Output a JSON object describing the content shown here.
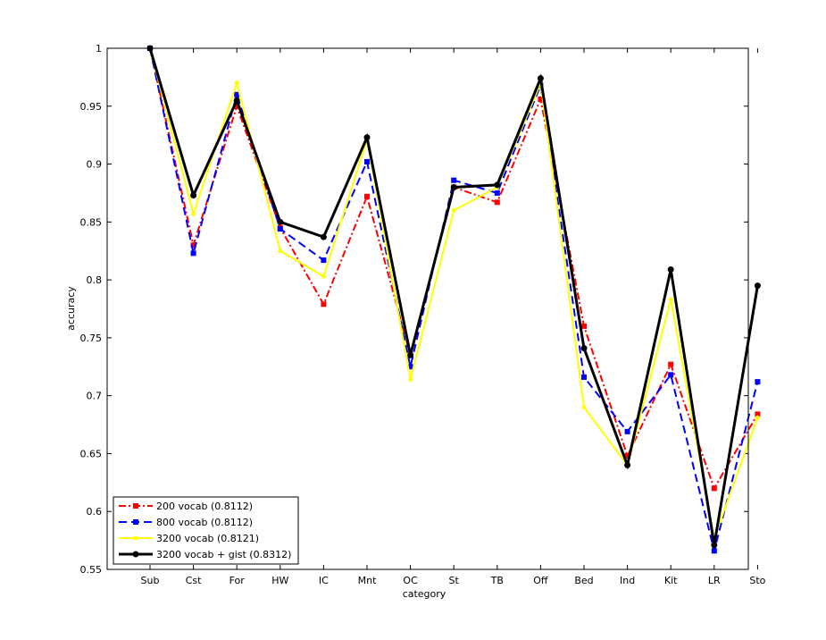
{
  "chart_data": {
    "type": "line",
    "title": "",
    "xlabel": "category",
    "ylabel": "accuracy",
    "categories": [
      "Sub",
      "Cst",
      "For",
      "HW",
      "IC",
      "Mnt",
      "OC",
      "St",
      "TB",
      "Off",
      "Bed",
      "Ind",
      "Kit",
      "LR",
      "Sto"
    ],
    "ylim": [
      0.55,
      1.0
    ],
    "yticks": [
      0.55,
      0.6,
      0.65,
      0.7,
      0.75,
      0.8,
      0.85,
      0.9,
      0.95,
      1
    ],
    "ytick_labels": [
      "0.55",
      "0.6",
      "0.65",
      "0.7",
      "0.75",
      "0.8",
      "0.85",
      "0.9",
      "0.95",
      "1"
    ],
    "grid": false,
    "legend_position": "bottom-left",
    "series": [
      {
        "name": "200 vocab (0.8112)",
        "color": "#ff0000",
        "dash": "dash-dot",
        "marker": "square",
        "values": [
          1.0,
          0.83,
          0.95,
          0.845,
          0.779,
          0.872,
          0.735,
          0.88,
          0.867,
          0.956,
          0.76,
          0.648,
          0.727,
          0.62,
          0.684
        ]
      },
      {
        "name": "800 vocab (0.8112)",
        "color": "#0000ff",
        "dash": "dashed",
        "marker": "square",
        "values": [
          1.0,
          0.823,
          0.96,
          0.844,
          0.817,
          0.902,
          0.725,
          0.886,
          0.875,
          0.968,
          0.716,
          0.669,
          0.718,
          0.566,
          0.712
        ]
      },
      {
        "name": "3200 vocab (0.8121)",
        "color": "#ffff00",
        "dash": "solid",
        "marker": "dot",
        "values": [
          1.0,
          0.857,
          0.97,
          0.825,
          0.803,
          0.921,
          0.714,
          0.86,
          0.88,
          0.97,
          0.69,
          0.64,
          0.783,
          0.577,
          0.681
        ]
      },
      {
        "name": "3200 vocab + gist (0.8312)",
        "color": "#000000",
        "dash": "solid",
        "marker": "dot",
        "values": [
          1.0,
          0.873,
          0.955,
          0.85,
          0.837,
          0.923,
          0.735,
          0.88,
          0.882,
          0.974,
          0.741,
          0.64,
          0.809,
          0.571,
          0.795
        ]
      }
    ]
  }
}
